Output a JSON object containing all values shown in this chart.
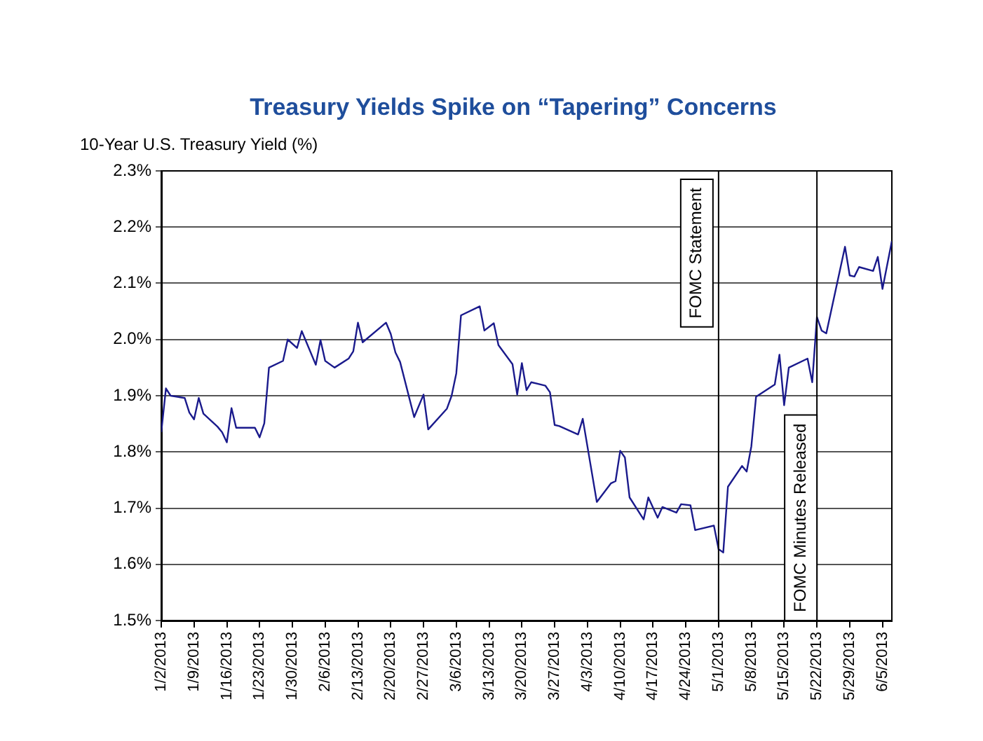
{
  "chart_data": {
    "type": "line",
    "title": "Treasury Yields Spike on “Tapering” Concerns",
    "ylabel": "10-Year U.S. Treasury Yield (%)",
    "x": [
      "2013-01-02",
      "2013-01-03",
      "2013-01-04",
      "2013-01-07",
      "2013-01-08",
      "2013-01-09",
      "2013-01-10",
      "2013-01-11",
      "2013-01-14",
      "2013-01-15",
      "2013-01-16",
      "2013-01-17",
      "2013-01-18",
      "2013-01-22",
      "2013-01-23",
      "2013-01-24",
      "2013-01-25",
      "2013-01-28",
      "2013-01-29",
      "2013-01-31",
      "2013-02-01",
      "2013-02-04",
      "2013-02-05",
      "2013-02-06",
      "2013-02-08",
      "2013-02-11",
      "2013-02-12",
      "2013-02-13",
      "2013-02-14",
      "2013-02-19",
      "2013-02-20",
      "2013-02-21",
      "2013-02-22",
      "2013-02-25",
      "2013-02-27",
      "2013-02-28",
      "2013-03-04",
      "2013-03-05",
      "2013-03-06",
      "2013-03-07",
      "2013-03-11",
      "2013-03-12",
      "2013-03-14",
      "2013-03-15",
      "2013-03-18",
      "2013-03-19",
      "2013-03-20",
      "2013-03-21",
      "2013-03-22",
      "2013-03-25",
      "2013-03-26",
      "2013-03-27",
      "2013-03-28",
      "2013-04-01",
      "2013-04-02",
      "2013-04-05",
      "2013-04-08",
      "2013-04-09",
      "2013-04-10",
      "2013-04-11",
      "2013-04-12",
      "2013-04-15",
      "2013-04-16",
      "2013-04-18",
      "2013-04-19",
      "2013-04-22",
      "2013-04-23",
      "2013-04-25",
      "2013-04-26",
      "2013-04-30",
      "2013-05-01",
      "2013-05-02",
      "2013-05-03",
      "2013-05-06",
      "2013-05-07",
      "2013-05-08",
      "2013-05-09",
      "2013-05-13",
      "2013-05-14",
      "2013-05-15",
      "2013-05-16",
      "2013-05-20",
      "2013-05-21",
      "2013-05-22",
      "2013-05-23",
      "2013-05-24",
      "2013-05-28",
      "2013-05-29",
      "2013-05-30",
      "2013-05-31",
      "2013-06-03",
      "2013-06-04",
      "2013-06-05",
      "2013-06-07"
    ],
    "series": [
      {
        "color": "#1a1a8c",
        "values": [
          1.835,
          1.913,
          1.9,
          1.896,
          1.87,
          1.858,
          1.896,
          1.868,
          1.845,
          1.835,
          1.817,
          1.878,
          1.843,
          1.843,
          1.826,
          1.851,
          1.95,
          1.962,
          2.0,
          1.985,
          2.015,
          1.955,
          1.999,
          1.962,
          1.95,
          1.966,
          1.979,
          2.03,
          1.995,
          2.03,
          2.01,
          1.977,
          1.96,
          1.862,
          1.902,
          1.84,
          1.877,
          1.9,
          1.94,
          2.043,
          2.059,
          2.016,
          2.029,
          1.99,
          1.956,
          1.902,
          1.958,
          1.91,
          1.924,
          1.918,
          1.906,
          1.848,
          1.846,
          1.831,
          1.859,
          1.711,
          1.744,
          1.748,
          1.802,
          1.79,
          1.719,
          1.68,
          1.719,
          1.683,
          1.702,
          1.692,
          1.707,
          1.705,
          1.661,
          1.669,
          1.627,
          1.621,
          1.738,
          1.775,
          1.765,
          1.81,
          1.898,
          1.92,
          1.973,
          1.883,
          1.95,
          1.966,
          1.924,
          2.04,
          2.016,
          2.011,
          2.165,
          2.114,
          2.112,
          2.129,
          2.122,
          2.147,
          2.09,
          2.175
        ]
      }
    ],
    "xlim": [
      "2013-01-02",
      "2013-06-07"
    ],
    "xticks": [
      {
        "value": "2013-01-02",
        "label": "1/2/2013"
      },
      {
        "value": "2013-01-09",
        "label": "1/9/2013"
      },
      {
        "value": "2013-01-16",
        "label": "1/16/2013"
      },
      {
        "value": "2013-01-23",
        "label": "1/23/2013"
      },
      {
        "value": "2013-01-30",
        "label": "1/30/2013"
      },
      {
        "value": "2013-02-06",
        "label": "2/6/2013"
      },
      {
        "value": "2013-02-13",
        "label": "2/13/2013"
      },
      {
        "value": "2013-02-20",
        "label": "2/20/2013"
      },
      {
        "value": "2013-02-27",
        "label": "2/27/2013"
      },
      {
        "value": "2013-03-06",
        "label": "3/6/2013"
      },
      {
        "value": "2013-03-13",
        "label": "3/13/2013"
      },
      {
        "value": "2013-03-20",
        "label": "3/20/2013"
      },
      {
        "value": "2013-03-27",
        "label": "3/27/2013"
      },
      {
        "value": "2013-04-03",
        "label": "4/3/2013"
      },
      {
        "value": "2013-04-10",
        "label": "4/10/2013"
      },
      {
        "value": "2013-04-17",
        "label": "4/17/2013"
      },
      {
        "value": "2013-04-24",
        "label": "4/24/2013"
      },
      {
        "value": "2013-05-01",
        "label": "5/1/2013"
      },
      {
        "value": "2013-05-08",
        "label": "5/8/2013"
      },
      {
        "value": "2013-05-15",
        "label": "5/15/2013"
      },
      {
        "value": "2013-05-22",
        "label": "5/22/2013"
      },
      {
        "value": "2013-05-29",
        "label": "5/29/2013"
      },
      {
        "value": "2013-06-05",
        "label": "6/5/2013"
      }
    ],
    "ylim": [
      1.5,
      2.3
    ],
    "yticks": [
      {
        "value": 1.5,
        "label": "1.5%"
      },
      {
        "value": 1.6,
        "label": "1.6%"
      },
      {
        "value": 1.7,
        "label": "1.7%"
      },
      {
        "value": 1.8,
        "label": "1.8%"
      },
      {
        "value": 1.9,
        "label": "1.9%"
      },
      {
        "value": 2.0,
        "label": "2.0%"
      },
      {
        "value": 2.1,
        "label": "2.1%"
      },
      {
        "value": 2.2,
        "label": "2.2%"
      },
      {
        "value": 2.3,
        "label": "2.3%"
      }
    ],
    "grid": "y",
    "legend": false,
    "marker": "none",
    "line_style": "solid",
    "ref_lines": [
      {
        "axis": "x",
        "value": "2013-05-01",
        "label": "FOMC Statement",
        "color": "#000000"
      },
      {
        "axis": "x",
        "value": "2013-05-22",
        "label": "FOMC Minutes Released",
        "color": "#000000"
      }
    ]
  }
}
